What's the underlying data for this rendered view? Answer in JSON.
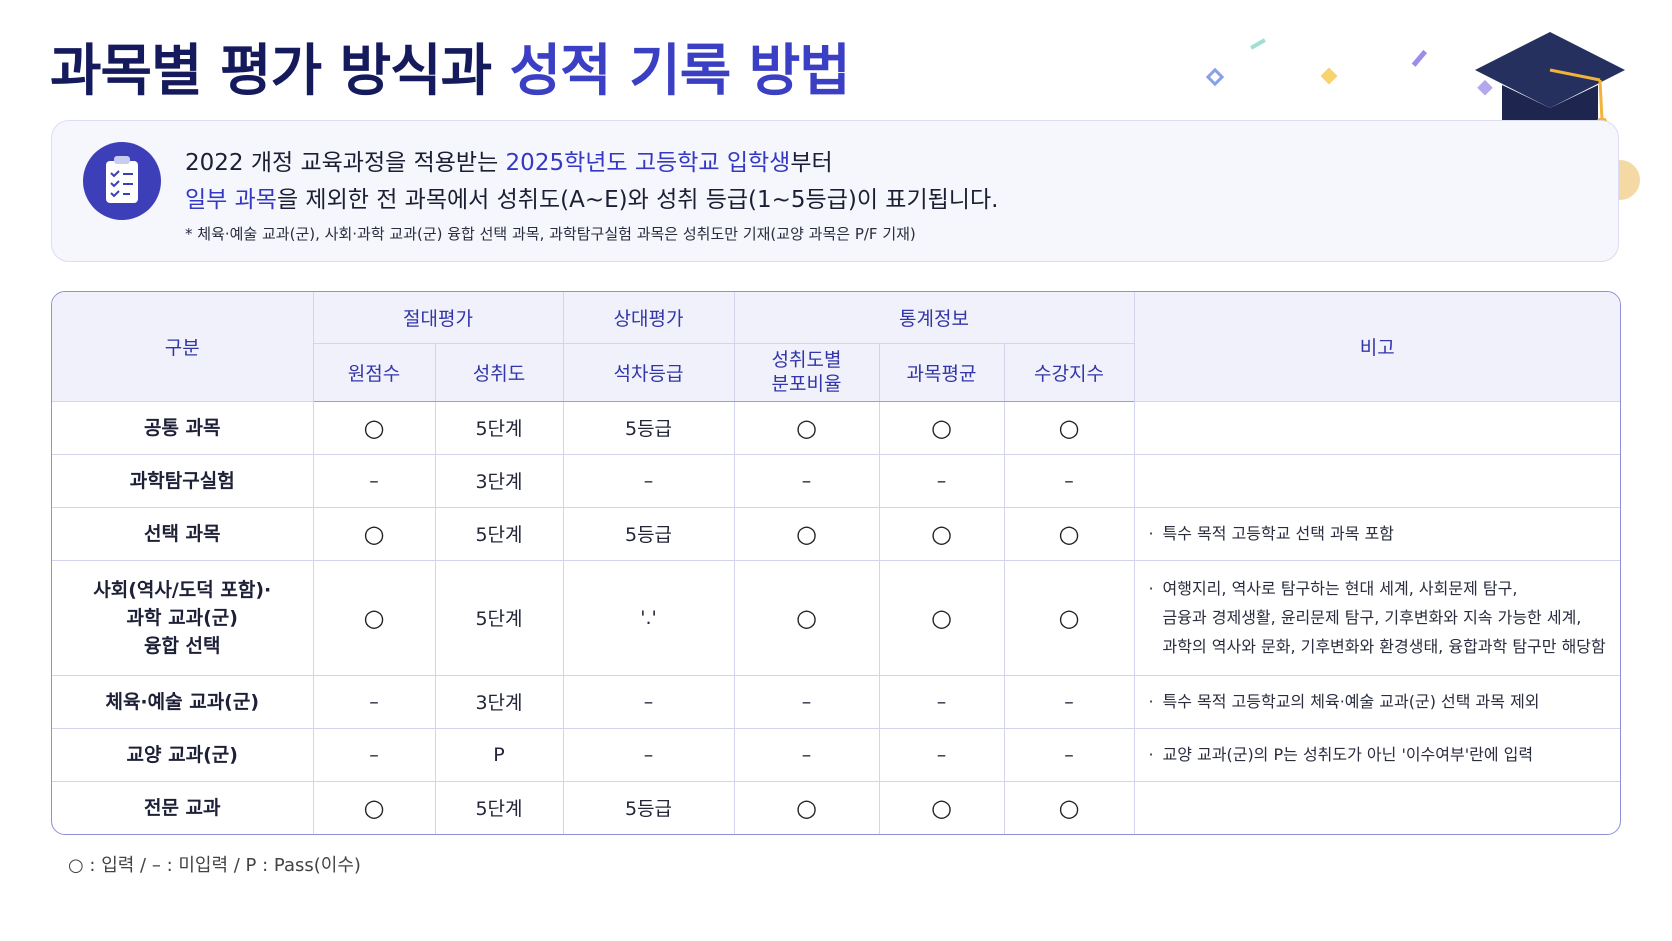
{
  "header": {
    "title_part1": "과목별 평가 방식과",
    "title_part2": "성적 기록 방법"
  },
  "info": {
    "line1": {
      "before": "2022 개정 교육과정을 적용받는 ",
      "highlight": "2025학년도 고등학교 입학생",
      "after": "부터"
    },
    "line2": {
      "highlight": "일부 과목",
      "after": "을 제외한 전 과목에서 성취도(A~E)와 성취 등급(1~5등급)이 표기됩니다."
    },
    "note": "* 체육·예술 교과(군), 사회·과학 교과(군) 융합 선택 과목, 과학탐구실험 과목은 성취도만 기재(교양 과목은 P/F 기재)"
  },
  "table": {
    "corner": "구분",
    "groups": [
      "절대평가",
      "상대평가",
      "통계정보"
    ],
    "remark_header": "비고",
    "subheaders": [
      "원점수",
      "성취도",
      "석차등급",
      [
        "성취도별",
        "분포비율"
      ],
      "과목평균",
      "수강지수"
    ],
    "rows": [
      {
        "name": [
          "공통 과목"
        ],
        "cells": [
          "○",
          "5단계",
          "5등급",
          "○",
          "○",
          "○"
        ],
        "remarks": []
      },
      {
        "name": [
          "과학탐구실험"
        ],
        "cells": [
          "–",
          "3단계",
          "–",
          "–",
          "–",
          "–"
        ],
        "remarks": []
      },
      {
        "name": [
          "선택 과목"
        ],
        "cells": [
          "○",
          "5단계",
          "5등급",
          "○",
          "○",
          "○"
        ],
        "remarks": [
          "특수 목적 고등학교 선택 과목 포함"
        ]
      },
      {
        "name": [
          "사회(역사/도덕 포함)·",
          "과학 교과(군)",
          "융합 선택"
        ],
        "cells": [
          "○",
          "5단계",
          "'.'",
          "○",
          "○",
          "○"
        ],
        "remarks": [
          "여행지리, 역사로 탐구하는 현대 세계, 사회문제 탐구,",
          "금융과 경제생활, 윤리문제 탐구, 기후변화와 지속 가능한 세계,",
          "과학의 역사와 문화, 기후변화와 환경생태, 융합과학 탐구만 해당함"
        ]
      },
      {
        "name": [
          "체육·예술 교과(군)"
        ],
        "cells": [
          "–",
          "3단계",
          "–",
          "–",
          "–",
          "–"
        ],
        "remarks": [
          "특수 목적 고등학교의 체육·예술 교과(군) 선택 과목 제외"
        ]
      },
      {
        "name": [
          "교양 교과(군)"
        ],
        "cells": [
          "–",
          "P",
          "–",
          "–",
          "–",
          "–"
        ],
        "remarks": [
          "교양 교과(군)의 P는 성취도가 아닌 '이수여부'란에 입력"
        ]
      },
      {
        "name": [
          "전문 교과"
        ],
        "cells": [
          "○",
          "5단계",
          "5등급",
          "○",
          "○",
          "○"
        ],
        "remarks": []
      }
    ],
    "legend": "○ : 입력  /  – : 미입력  /  P : Pass(이수)"
  }
}
